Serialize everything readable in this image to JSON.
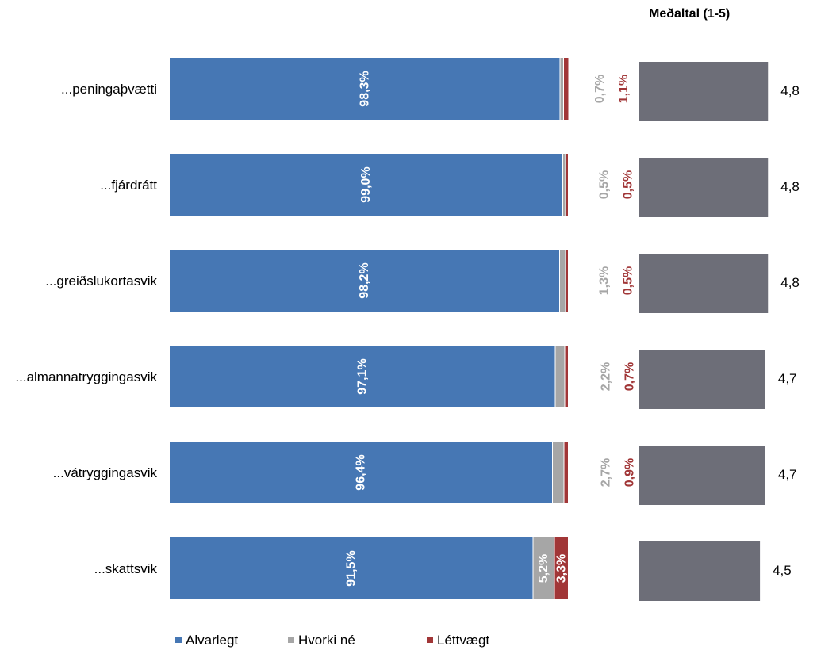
{
  "chart_data": [
    {
      "type": "bar",
      "orientation": "horizontal",
      "stacked": true,
      "categories": [
        "...peningaþvætti",
        "...fjárdrátt",
        "...greiðslukortasvik",
        "...almannatryggingasvik",
        "...vátryggingasvik",
        "...skattsvik"
      ],
      "series": [
        {
          "name": "Alvarlegt",
          "color": "#4677b4",
          "values": [
            98.3,
            99.0,
            98.2,
            97.1,
            96.4,
            91.5
          ],
          "labels": [
            "98,3%",
            "99,0%",
            "98,2%",
            "97,1%",
            "96,4%",
            "91,5%"
          ]
        },
        {
          "name": "Hvorki né",
          "color": "#a6a6a6",
          "values": [
            0.7,
            0.5,
            1.3,
            2.2,
            2.7,
            5.2
          ],
          "labels": [
            "0,7%",
            "0,5%",
            "1,3%",
            "2,2%",
            "2,7%",
            "5,2%"
          ]
        },
        {
          "name": "Léttvægt",
          "color": "#a13637",
          "values": [
            1.1,
            0.5,
            0.5,
            0.7,
            0.9,
            3.3
          ],
          "labels": [
            "1,1%",
            "0,5%",
            "0,5%",
            "0,7%",
            "0,9%",
            "3,3%"
          ]
        }
      ],
      "legend_position": "bottom",
      "grid": false
    },
    {
      "type": "bar",
      "orientation": "horizontal",
      "title": "Meðaltal (1-5)",
      "series": [
        {
          "color": "#6d6e78",
          "values": [
            4.8,
            4.8,
            4.8,
            4.7,
            4.7,
            4.5
          ],
          "labels": [
            "4,8",
            "4,8",
            "4,8",
            "4,7",
            "4,7",
            "4,5"
          ]
        }
      ],
      "xlim": [
        0,
        5
      ],
      "grid": false
    }
  ]
}
